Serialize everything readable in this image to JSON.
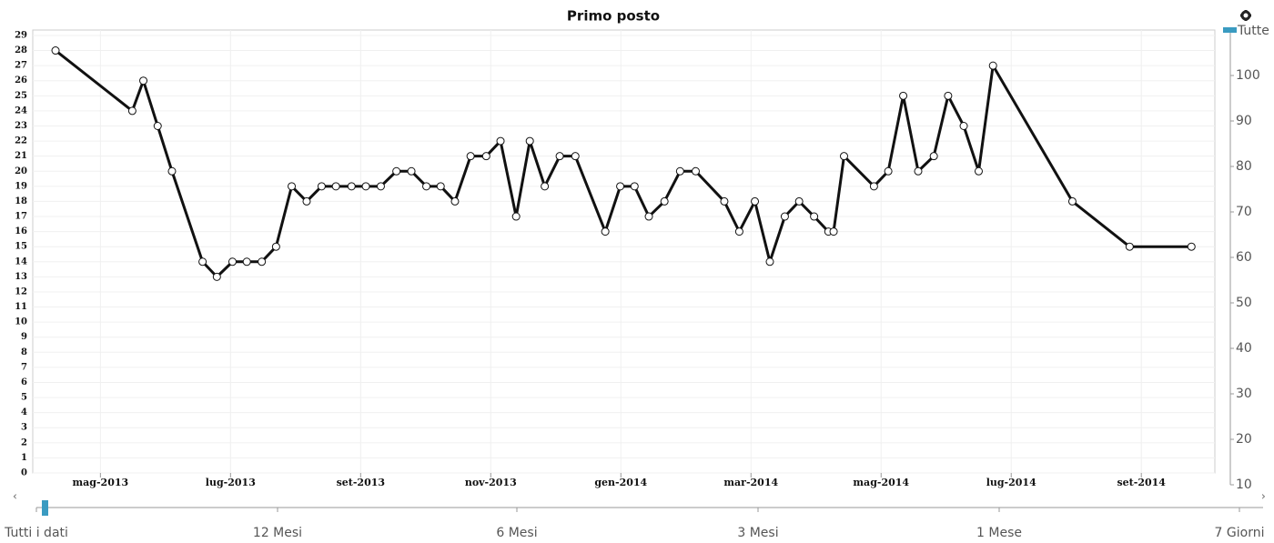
{
  "chart_data": {
    "type": "line",
    "title": "Primo posto",
    "x": [
      -0.69,
      0.49,
      0.66,
      0.88,
      1.1,
      1.57,
      1.79,
      2.03,
      2.25,
      2.48,
      2.7,
      2.94,
      3.17,
      3.4,
      3.62,
      3.86,
      4.08,
      4.31,
      4.55,
      4.78,
      5.01,
      5.23,
      5.45,
      5.69,
      5.93,
      6.15,
      6.39,
      6.6,
      6.83,
      7.06,
      7.3,
      7.76,
      7.99,
      8.21,
      8.43,
      8.67,
      8.91,
      9.15,
      9.59,
      9.82,
      10.06,
      10.29,
      10.52,
      10.74,
      10.97,
      11.19,
      11.27,
      11.43,
      11.89,
      12.11,
      12.34,
      12.57,
      12.81,
      13.03,
      13.27,
      13.5,
      13.72,
      14.94,
      15.82,
      16.77
    ],
    "series": [
      {
        "color": "#111111",
        "values": [
          28,
          24,
          26,
          23,
          20,
          14,
          13,
          14,
          14,
          14,
          15,
          19,
          18,
          19,
          19,
          19,
          19,
          19,
          20,
          20,
          19,
          19,
          18,
          21,
          21,
          22,
          17,
          22,
          19,
          21,
          21,
          16,
          19,
          19,
          17,
          18,
          20,
          20,
          18,
          16,
          18,
          14,
          17,
          18,
          17,
          16,
          16,
          21,
          19,
          20,
          25,
          20,
          21,
          25,
          23,
          20,
          27,
          18,
          15,
          15
        ]
      }
    ],
    "xlim": [
      -1.04,
      17.13
    ],
    "xticks": [
      {
        "value": 0,
        "label": "mag-2013"
      },
      {
        "value": 2,
        "label": "lug-2013"
      },
      {
        "value": 4,
        "label": "set-2013"
      },
      {
        "value": 6,
        "label": "nov-2013"
      },
      {
        "value": 8,
        "label": "gen-2014"
      },
      {
        "value": 10,
        "label": "mar-2014"
      },
      {
        "value": 12,
        "label": "mag-2014"
      },
      {
        "value": 14,
        "label": "lug-2014"
      },
      {
        "value": 16,
        "label": "set-2014"
      }
    ],
    "ylim": [
      0,
      29.36
    ],
    "yticks": [
      0,
      1,
      2,
      3,
      4,
      5,
      6,
      7,
      8,
      9,
      10,
      11,
      12,
      13,
      14,
      15,
      16,
      17,
      18,
      19,
      20,
      21,
      22,
      23,
      24,
      25,
      26,
      27,
      28,
      29
    ],
    "grid": true
  },
  "range_slider": {
    "label": "Tutte",
    "ylim": [
      10,
      110
    ],
    "yticks": [
      10,
      20,
      30,
      40,
      50,
      60,
      70,
      80,
      90,
      100
    ]
  },
  "zoom_slider": {
    "labels": [
      "Tutti i dati",
      "12 Mesi",
      "6 Mesi",
      "3 Mesi",
      "1 Mese",
      "7 Giorni"
    ]
  }
}
